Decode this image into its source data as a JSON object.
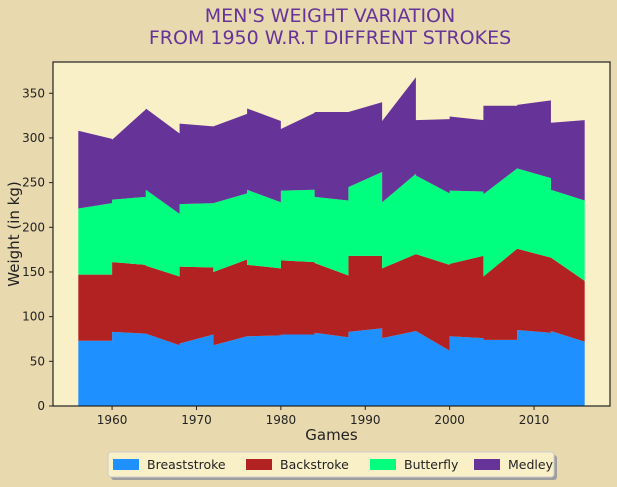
{
  "chart_data": {
    "type": "area",
    "stacked": true,
    "title_lines": [
      "MEN'S WEIGHT VARIATION",
      "FROM 1950 W.R.T DIFFRENT STROKES"
    ],
    "xlabel": "Games",
    "ylabel": "Weight (in kg)",
    "xlim": [
      1953,
      2019
    ],
    "ylim": [
      0,
      385
    ],
    "xticks": [
      1960,
      1970,
      1980,
      1990,
      2000,
      2010
    ],
    "yticks": [
      0,
      50,
      100,
      150,
      200,
      250,
      300,
      350
    ],
    "grid": false,
    "legend_position": "bottom",
    "x": [
      1956,
      1960,
      1960,
      1964,
      1964,
      1968,
      1968,
      1972,
      1972,
      1976,
      1976,
      1980,
      1980,
      1984,
      1984,
      1988,
      1988,
      1992,
      1992,
      1996,
      1996,
      2000,
      2000,
      2004,
      2004,
      2008,
      2008,
      2012,
      2012,
      2016
    ],
    "series": [
      {
        "name": "Breaststroke",
        "color": "#1e90ff",
        "values": [
          73,
          73,
          83,
          81,
          81,
          68,
          70,
          80,
          68,
          78,
          78,
          79,
          80,
          80,
          82,
          77,
          83,
          87,
          76,
          84,
          84,
          62,
          78,
          76,
          74,
          74,
          85,
          82,
          84,
          72
        ]
      },
      {
        "name": "Backstroke",
        "color": "#b22222",
        "values": [
          74,
          74,
          78,
          77,
          76,
          77,
          86,
          75,
          82,
          86,
          80,
          75,
          83,
          81,
          78,
          69,
          85,
          81,
          78,
          86,
          86,
          96,
          81,
          92,
          71,
          102,
          91,
          84,
          82,
          68
        ]
      },
      {
        "name": "Butterfly",
        "color": "#00ff7f",
        "values": [
          74,
          80,
          70,
          76,
          85,
          70,
          70,
          72,
          77,
          74,
          84,
          74,
          78,
          81,
          74,
          84,
          77,
          94,
          74,
          90,
          88,
          80,
          82,
          72,
          92,
          90,
          90,
          89,
          76,
          90
        ]
      },
      {
        "name": "Medley",
        "color": "#663399",
        "values": [
          87,
          72,
          67,
          98,
          91,
          90,
          90,
          86,
          86,
          89,
          91,
          91,
          69,
          86,
          95,
          99,
          84,
          78,
          91,
          108,
          62,
          83,
          83,
          80,
          99,
          70,
          71,
          87,
          75,
          90
        ]
      }
    ]
  }
}
